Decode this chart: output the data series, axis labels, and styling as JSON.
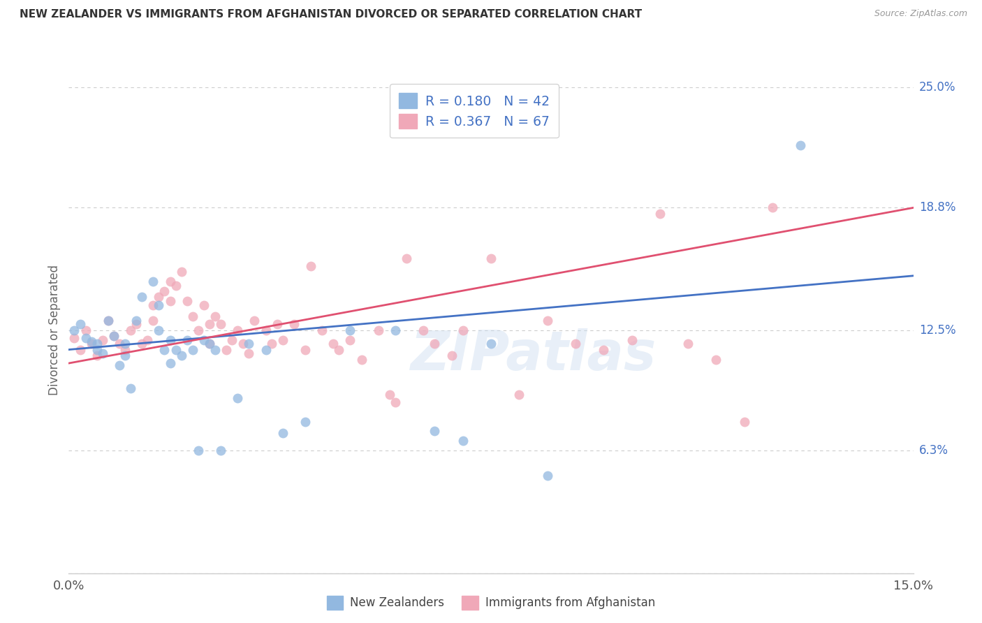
{
  "title": "NEW ZEALANDER VS IMMIGRANTS FROM AFGHANISTAN DIVORCED OR SEPARATED CORRELATION CHART",
  "source": "Source: ZipAtlas.com",
  "ylabel": "Divorced or Separated",
  "watermark": "ZIPatlas",
  "blue_color": "#92b8e0",
  "pink_color": "#f0a8b8",
  "blue_line_color": "#4472c4",
  "pink_line_color": "#e05070",
  "blue_label": "New Zealanders",
  "pink_label": "Immigrants from Afghanistan",
  "R_blue": 0.18,
  "N_blue": 42,
  "R_pink": 0.367,
  "N_pink": 67,
  "blue_x": [
    0.001,
    0.002,
    0.003,
    0.004,
    0.005,
    0.005,
    0.006,
    0.007,
    0.008,
    0.009,
    0.01,
    0.01,
    0.011,
    0.012,
    0.013,
    0.015,
    0.016,
    0.016,
    0.017,
    0.018,
    0.018,
    0.019,
    0.02,
    0.021,
    0.022,
    0.023,
    0.024,
    0.025,
    0.026,
    0.027,
    0.03,
    0.032,
    0.035,
    0.038,
    0.042,
    0.05,
    0.058,
    0.065,
    0.07,
    0.075,
    0.085,
    0.13
  ],
  "blue_y": [
    0.125,
    0.128,
    0.121,
    0.119,
    0.118,
    0.115,
    0.113,
    0.13,
    0.122,
    0.107,
    0.118,
    0.112,
    0.095,
    0.13,
    0.142,
    0.15,
    0.138,
    0.125,
    0.115,
    0.12,
    0.108,
    0.115,
    0.112,
    0.12,
    0.115,
    0.063,
    0.12,
    0.118,
    0.115,
    0.063,
    0.09,
    0.118,
    0.115,
    0.072,
    0.078,
    0.125,
    0.125,
    0.073,
    0.068,
    0.118,
    0.05,
    0.22
  ],
  "pink_x": [
    0.001,
    0.002,
    0.003,
    0.004,
    0.005,
    0.006,
    0.007,
    0.008,
    0.009,
    0.01,
    0.011,
    0.012,
    0.013,
    0.014,
    0.015,
    0.015,
    0.016,
    0.017,
    0.018,
    0.018,
    0.019,
    0.02,
    0.021,
    0.022,
    0.023,
    0.024,
    0.025,
    0.025,
    0.026,
    0.027,
    0.028,
    0.029,
    0.03,
    0.031,
    0.032,
    0.033,
    0.035,
    0.036,
    0.037,
    0.038,
    0.04,
    0.042,
    0.043,
    0.045,
    0.047,
    0.048,
    0.05,
    0.052,
    0.055,
    0.057,
    0.058,
    0.06,
    0.063,
    0.065,
    0.068,
    0.07,
    0.075,
    0.08,
    0.085,
    0.09,
    0.095,
    0.1,
    0.105,
    0.11,
    0.115,
    0.12,
    0.125
  ],
  "pink_y": [
    0.121,
    0.115,
    0.125,
    0.118,
    0.112,
    0.12,
    0.13,
    0.122,
    0.118,
    0.115,
    0.125,
    0.128,
    0.118,
    0.12,
    0.13,
    0.138,
    0.142,
    0.145,
    0.15,
    0.14,
    0.148,
    0.155,
    0.14,
    0.132,
    0.125,
    0.138,
    0.128,
    0.118,
    0.132,
    0.128,
    0.115,
    0.12,
    0.125,
    0.118,
    0.113,
    0.13,
    0.125,
    0.118,
    0.128,
    0.12,
    0.128,
    0.115,
    0.158,
    0.125,
    0.118,
    0.115,
    0.12,
    0.11,
    0.125,
    0.092,
    0.088,
    0.162,
    0.125,
    0.118,
    0.112,
    0.125,
    0.162,
    0.092,
    0.13,
    0.118,
    0.115,
    0.12,
    0.185,
    0.118,
    0.11,
    0.078,
    0.188
  ],
  "xlim": [
    0.0,
    0.15
  ],
  "ylim": [
    0.0,
    0.25
  ],
  "ytick_vals": [
    0.0,
    0.063,
    0.125,
    0.188,
    0.25
  ],
  "ytick_labels": [
    "",
    "6.3%",
    "12.5%",
    "18.8%",
    "25.0%"
  ],
  "xtick_positions": [
    0.0,
    0.05,
    0.1,
    0.15
  ],
  "xtick_labels": [
    "0.0%",
    "",
    "",
    "15.0%"
  ],
  "background_color": "#ffffff",
  "grid_color": "#cccccc"
}
